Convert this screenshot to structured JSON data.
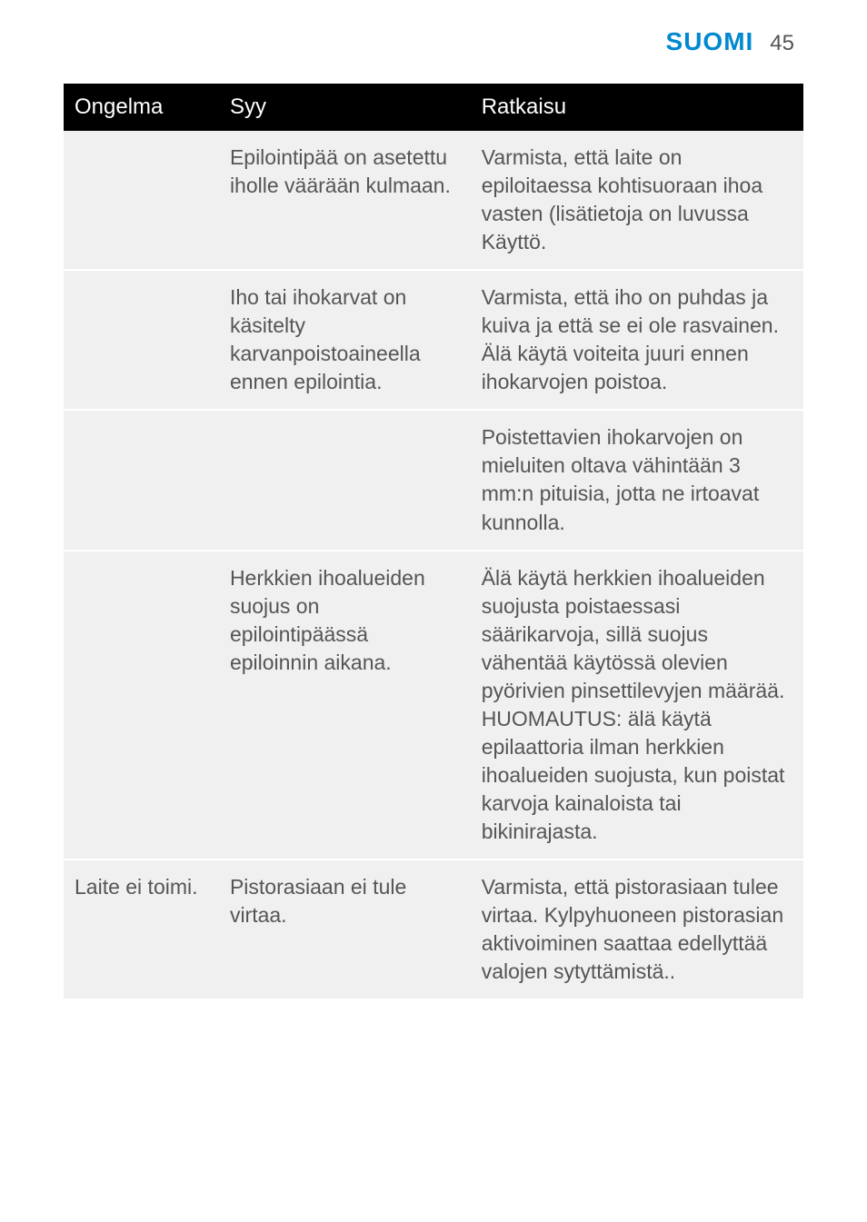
{
  "header": {
    "section_title": "SUOMI",
    "page_number": "45"
  },
  "table": {
    "columns": [
      "Ongelma",
      "Syy",
      "Ratkaisu"
    ],
    "rows": [
      {
        "problem": "",
        "cause": "Epilointipää on asetettu iholle väärään kulmaan.",
        "solution": "Varmista, että laite on epiloitaessa kohtisuoraan ihoa vasten (lisätietoja on luvussa Käyttö."
      },
      {
        "problem": "",
        "cause": "Iho tai ihokarvat on käsitelty karvanpoistoaineella ennen epilointia.",
        "solution": "Varmista, että iho on puhdas ja kuiva ja että se ei ole rasvainen. Älä käytä voiteita juuri ennen ihokarvojen poistoa."
      },
      {
        "problem": "",
        "cause": "",
        "solution": "Poistettavien ihokarvojen on mieluiten oltava vähintään 3 mm:n pituisia, jotta ne irtoavat kunnolla."
      },
      {
        "problem": "",
        "cause": "Herkkien ihoalueiden suojus on epilointipäässä epiloinnin aikana.",
        "solution": "Älä käytä herkkien ihoalueiden suojusta poistaessasi säärikarvoja, sillä suojus vähentää käytössä olevien pyörivien pinsettilevyjen määrää. HUOMAUTUS: älä käytä epilaattoria ilman herkkien ihoalueiden suojusta, kun poistat karvoja kainaloista tai bikinirajasta."
      },
      {
        "problem": "Laite ei toimi.",
        "cause": "Pistorasiaan ei tule virtaa.",
        "solution": "Varmista, että pistorasiaan tulee virtaa. Kylpyhuoneen pistorasian aktivoiminen saattaa edellyttää valojen sytyttämistä.."
      }
    ]
  },
  "colors": {
    "brand_blue": "#0089d0",
    "header_bg": "#000000",
    "header_text": "#ffffff",
    "row_bg": "#f0f0f0",
    "body_text": "#555555",
    "page_bg": "#ffffff",
    "row_border": "#ffffff"
  },
  "typography": {
    "section_title_size": 28,
    "page_number_size": 24,
    "th_size": 24,
    "td_size": 23
  }
}
